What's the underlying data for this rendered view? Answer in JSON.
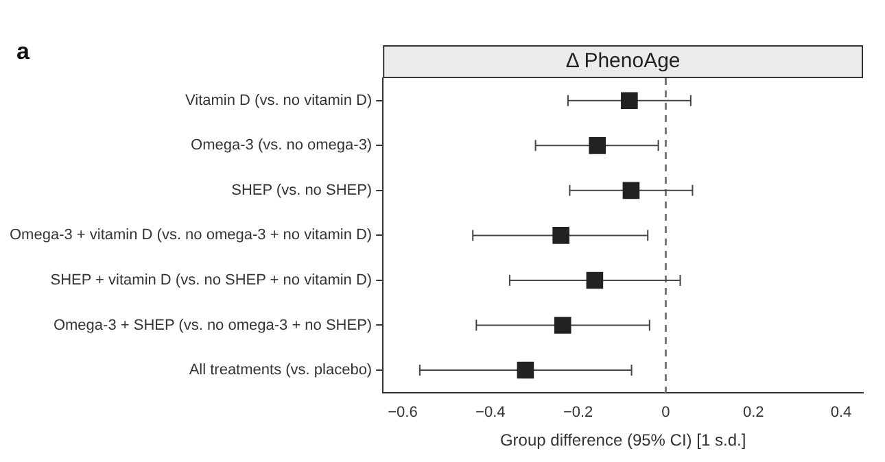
{
  "chart_data": {
    "type": "scatter",
    "orientation": "horizontal",
    "title": "Δ PhenoAge",
    "xlabel": "Group difference (95% CI) [1 s.d.]",
    "annotations": [
      "a"
    ],
    "categories": [
      "Vitamin D (vs. no vitamin D)",
      "Omega-3 (vs. no omega-3)",
      "SHEP (vs. no SHEP)",
      "Omega-3 + vitamin D (vs. no omega-3 + no vitamin D)",
      "SHEP + vitamin D (vs. no SHEP + no vitamin D)",
      "Omega-3 + SHEP (vs. no omega-3 + no SHEP)",
      "All treatments (vs. placebo)"
    ],
    "values": [
      -0.083,
      -0.156,
      -0.079,
      -0.239,
      -0.162,
      -0.235,
      -0.32
    ],
    "errors": [
      [
        -0.223,
        0.057
      ],
      [
        -0.297,
        -0.017
      ],
      [
        -0.219,
        0.061
      ],
      [
        -0.44,
        -0.041
      ],
      [
        -0.356,
        0.033
      ],
      [
        -0.432,
        -0.037
      ],
      [
        -0.561,
        -0.078
      ]
    ],
    "color": "#222222",
    "marker": "square",
    "xlim": [
      -0.645,
      0.45
    ],
    "xticks": [
      -0.6,
      -0.4,
      -0.2,
      0,
      0.2,
      0.4
    ],
    "ref_lines": [
      {
        "axis": "x",
        "value": 0,
        "color": "#777777",
        "line_style": "dashed"
      }
    ],
    "legend": false
  }
}
